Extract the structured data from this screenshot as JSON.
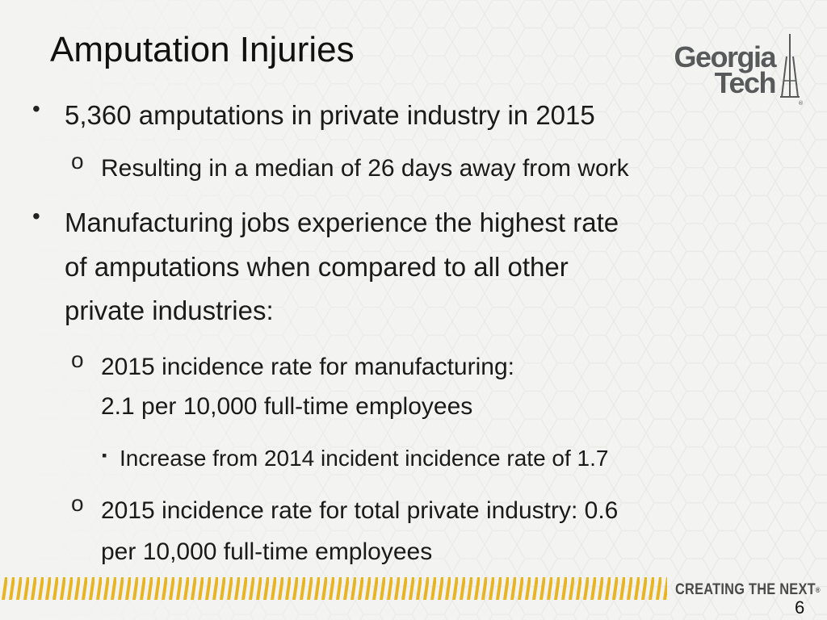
{
  "slide": {
    "title": "Amputation Injuries",
    "logo": {
      "line1": "Georgia",
      "line2": "Tech"
    },
    "bullets": {
      "b1": "5,360 amputations in private industry in 2015",
      "b1_sub1": "Resulting in a median of 26 days away from work",
      "b2_line1": "Manufacturing jobs experience the highest rate",
      "b2_line2": "of amputations when compared to all other",
      "b2_line3": "private industries:",
      "b2_sub1_line1": "2015 incidence rate for manufacturing:",
      "b2_sub1_line2": "2.1 per 10,000 full-time employees",
      "b2_sub1_sub1": "Increase from 2014 incident incidence rate of 1.7",
      "b2_sub2_line1": "2015 incidence rate for total private industry: 0.6",
      "b2_sub2_line2": "per 10,000 full-time employees"
    },
    "markers": {
      "disc": "•",
      "circle": "o",
      "square": "▪"
    },
    "footer": {
      "tagline": "CREATING THE NEXT",
      "registered": "®",
      "page_number": "6"
    },
    "colors": {
      "stripe": "#e8b422",
      "logo_gray": "#58595b",
      "background": "#f3f3f1"
    },
    "icons": {
      "logo_tower": "tower-icon"
    }
  }
}
